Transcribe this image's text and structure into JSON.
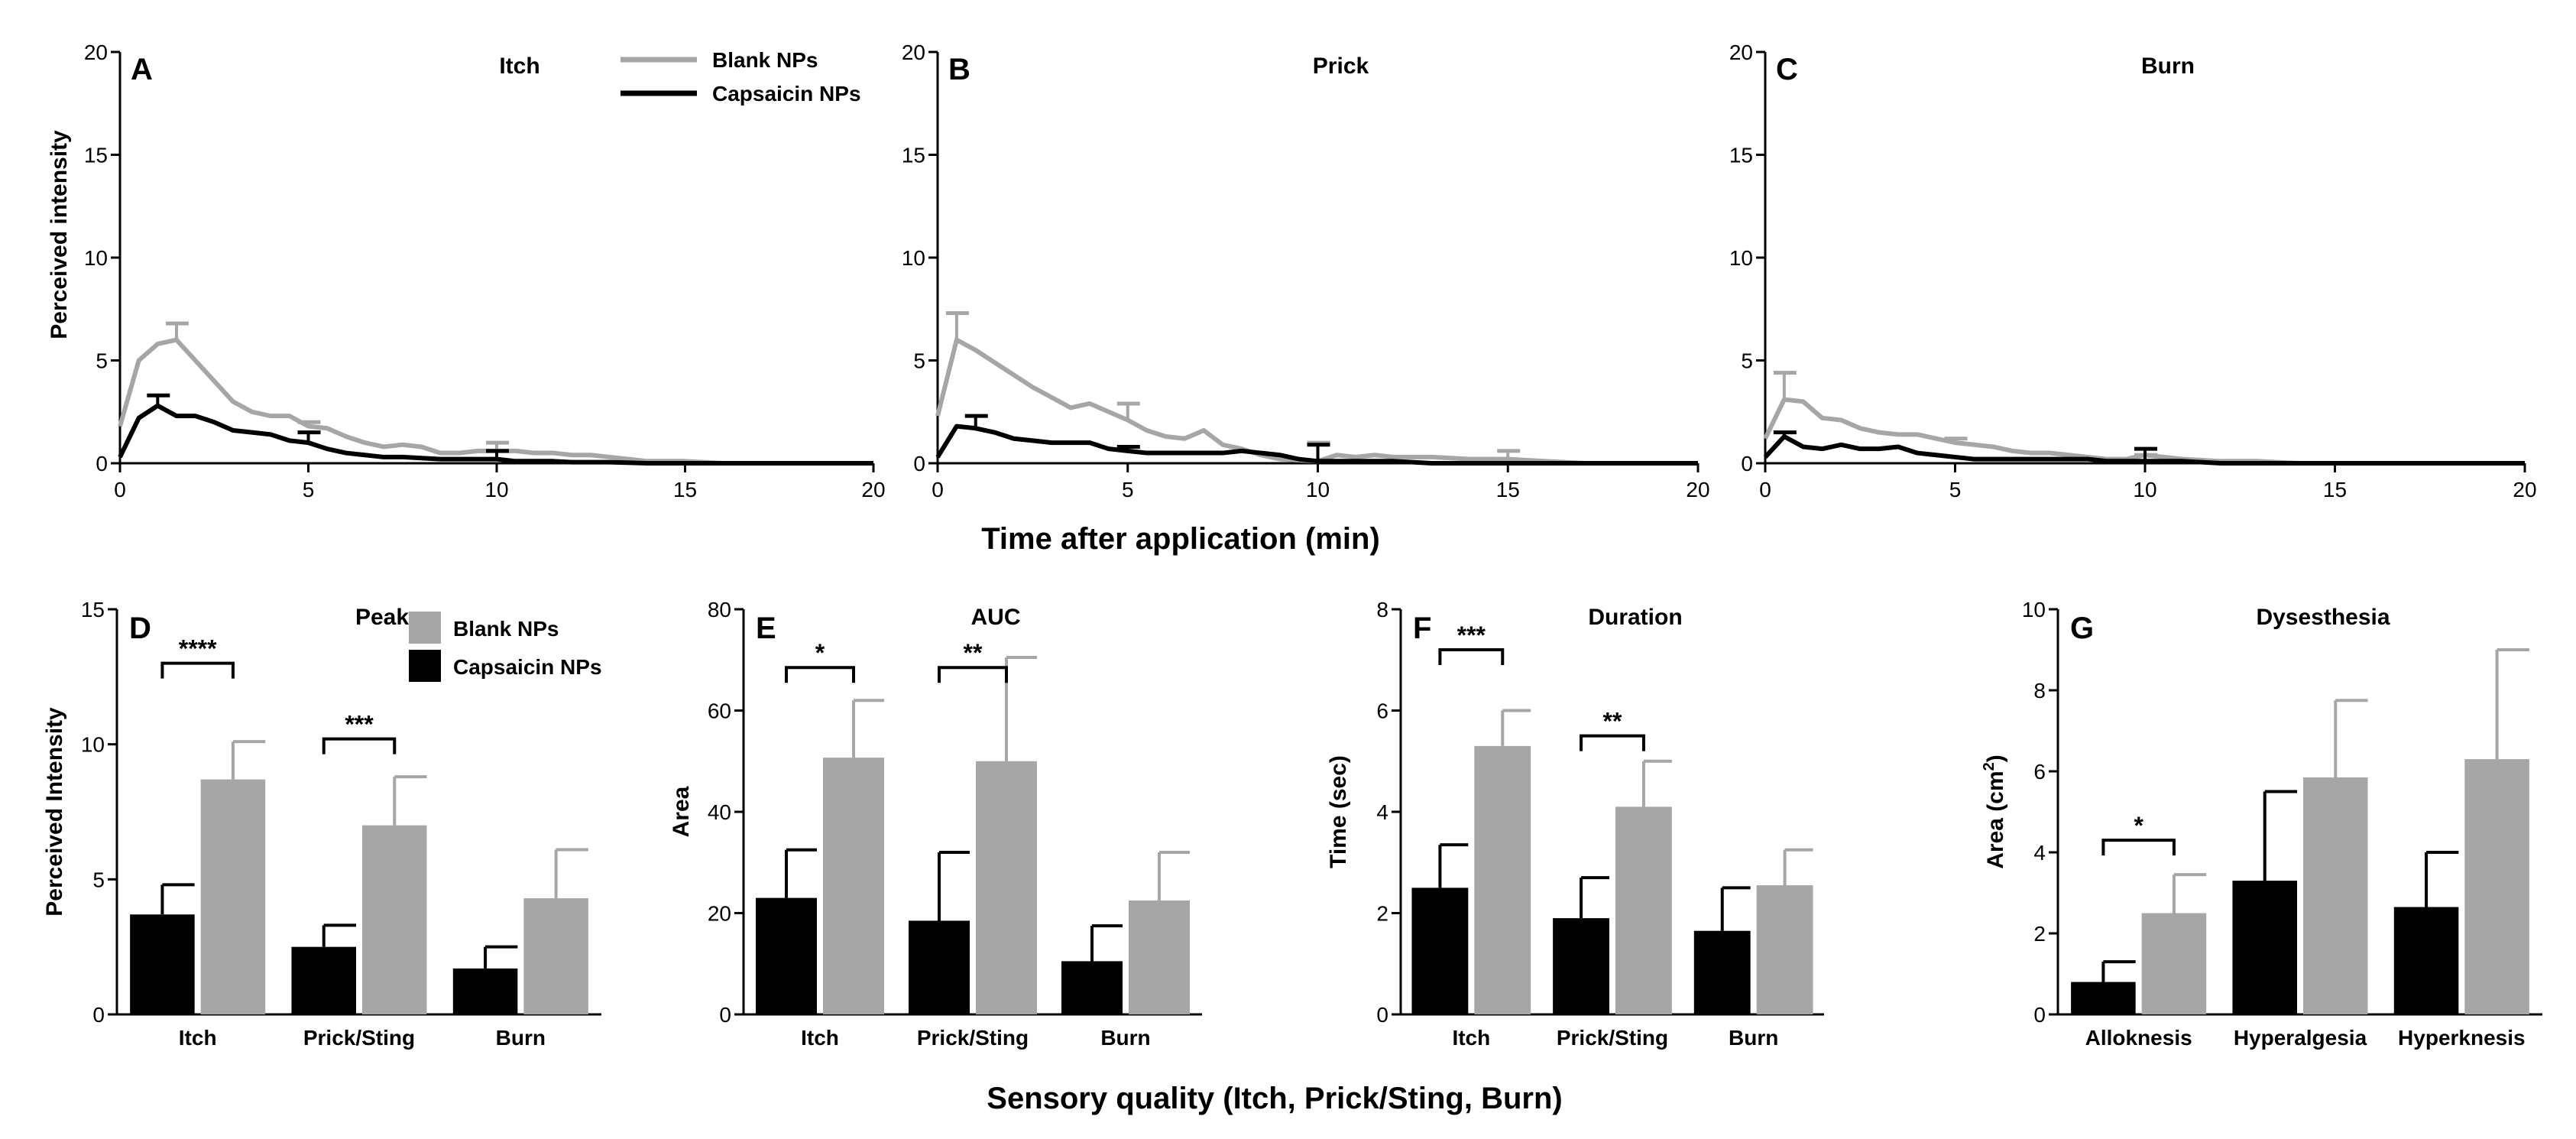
{
  "figure": {
    "bottom_xlabel_top": "Time after application (min)",
    "bottom_xlabel_bottom": "Sensory quality (Itch, Prick/Sting, Burn)"
  },
  "colors": {
    "blank": "#a6a6a6",
    "capsaicin": "#000000"
  },
  "chart_data": [
    {
      "id": "A",
      "type": "line",
      "title": "Itch",
      "letter": "A",
      "xlabel": "",
      "ylabel": "Perceived intensity",
      "xlim": [
        0,
        20
      ],
      "ylim": [
        0,
        20
      ],
      "xticks": [
        0,
        5,
        10,
        15,
        20
      ],
      "yticks": [
        0,
        5,
        10,
        15,
        20
      ],
      "legend": [
        "Blank NPs",
        "Capsaicin NPs"
      ],
      "series": [
        {
          "name": "Blank NPs",
          "color": "#a6a6a6",
          "x": [
            0,
            0.5,
            1,
            1.5,
            2,
            2.5,
            3,
            3.5,
            4,
            4.5,
            5,
            5.5,
            6,
            6.5,
            7,
            7.5,
            8,
            8.5,
            9,
            9.5,
            10,
            10.5,
            11,
            11.5,
            12,
            12.5,
            13,
            13.5,
            14,
            14.5,
            15,
            15.5,
            16,
            17,
            18,
            19,
            20
          ],
          "y": [
            1.8,
            5.0,
            5.8,
            6.0,
            5.0,
            4.0,
            3.0,
            2.5,
            2.3,
            2.3,
            1.8,
            1.7,
            1.3,
            1.0,
            0.8,
            0.9,
            0.8,
            0.5,
            0.5,
            0.6,
            0.6,
            0.6,
            0.5,
            0.5,
            0.4,
            0.4,
            0.3,
            0.2,
            0.1,
            0.1,
            0.1,
            0.05,
            0.0,
            0.0,
            0.0,
            0.0,
            0.0
          ],
          "error_x": [
            1.5,
            5,
            10
          ],
          "error_hi": [
            6.8,
            2.0,
            1.0
          ]
        },
        {
          "name": "Capsaicin NPs",
          "color": "#000000",
          "x": [
            0,
            0.5,
            1,
            1.5,
            2,
            2.5,
            3,
            3.5,
            4,
            4.5,
            5,
            5.5,
            6,
            6.5,
            7,
            7.5,
            8,
            8.5,
            9,
            9.5,
            10,
            10.5,
            11,
            11.5,
            12,
            13,
            14,
            15,
            16,
            17,
            18,
            19,
            20
          ],
          "y": [
            0.3,
            2.2,
            2.8,
            2.3,
            2.3,
            2.0,
            1.6,
            1.5,
            1.4,
            1.1,
            1.0,
            0.7,
            0.5,
            0.4,
            0.3,
            0.3,
            0.25,
            0.2,
            0.2,
            0.2,
            0.2,
            0.1,
            0.1,
            0.1,
            0.05,
            0.05,
            0.0,
            0.0,
            0.0,
            0.0,
            0.0,
            0.0,
            0.0
          ],
          "error_x": [
            1,
            5,
            10
          ],
          "error_hi": [
            3.3,
            1.5,
            0.6
          ]
        }
      ]
    },
    {
      "id": "B",
      "type": "line",
      "title": "Prick",
      "letter": "B",
      "xlabel": "",
      "ylabel": "",
      "xlim": [
        0,
        20
      ],
      "ylim": [
        0,
        20
      ],
      "xticks": [
        0,
        5,
        10,
        15,
        20
      ],
      "yticks": [
        0,
        5,
        10,
        15,
        20
      ],
      "series": [
        {
          "name": "Blank NPs",
          "color": "#a6a6a6",
          "x": [
            0,
            0.5,
            1,
            1.5,
            2,
            2.5,
            3,
            3.5,
            4,
            4.5,
            5,
            5.5,
            6,
            6.5,
            7,
            7.5,
            8,
            8.5,
            9,
            9.5,
            10,
            10.5,
            11,
            11.5,
            12,
            12.5,
            13,
            14,
            15,
            16,
            17,
            18,
            19,
            20
          ],
          "y": [
            2.3,
            6.0,
            5.5,
            4.9,
            4.3,
            3.7,
            3.2,
            2.7,
            2.9,
            2.5,
            2.1,
            1.6,
            1.3,
            1.2,
            1.6,
            0.9,
            0.7,
            0.4,
            0.2,
            0.15,
            0.1,
            0.4,
            0.3,
            0.4,
            0.3,
            0.3,
            0.3,
            0.2,
            0.2,
            0.1,
            0.0,
            0.0,
            0.0,
            0.0
          ],
          "error_x": [
            0.5,
            5,
            10,
            15
          ],
          "error_hi": [
            7.3,
            2.9,
            1.0,
            0.6
          ]
        },
        {
          "name": "Capsaicin NPs",
          "color": "#000000",
          "x": [
            0,
            0.5,
            1,
            1.5,
            2,
            2.5,
            3,
            3.5,
            4,
            4.5,
            5,
            5.5,
            6,
            6.5,
            7,
            7.5,
            8,
            8.5,
            9,
            9.5,
            10,
            11,
            12,
            13,
            14,
            15,
            16,
            17,
            18,
            19,
            20
          ],
          "y": [
            0.3,
            1.8,
            1.7,
            1.5,
            1.2,
            1.1,
            1.0,
            1.0,
            1.0,
            0.7,
            0.6,
            0.5,
            0.5,
            0.5,
            0.5,
            0.5,
            0.6,
            0.5,
            0.4,
            0.2,
            0.1,
            0.1,
            0.1,
            0.0,
            0.0,
            0.0,
            0.0,
            0.0,
            0.0,
            0.0,
            0.0
          ],
          "error_x": [
            1,
            5,
            10
          ],
          "error_hi": [
            2.3,
            0.8,
            0.9
          ]
        }
      ]
    },
    {
      "id": "C",
      "type": "line",
      "title": "Burn",
      "letter": "C",
      "xlabel": "",
      "ylabel": "",
      "xlim": [
        0,
        20
      ],
      "ylim": [
        0,
        20
      ],
      "xticks": [
        0,
        5,
        10,
        15,
        20
      ],
      "yticks": [
        0,
        5,
        10,
        15,
        20
      ],
      "series": [
        {
          "name": "Blank NPs",
          "color": "#a6a6a6",
          "x": [
            0,
            0.5,
            1,
            1.5,
            2,
            2.5,
            3,
            3.5,
            4,
            4.5,
            5,
            5.5,
            6,
            6.5,
            7,
            7.5,
            8,
            8.5,
            9,
            9.5,
            10,
            10.5,
            11,
            12,
            13,
            14,
            15,
            16,
            17,
            18,
            19,
            20
          ],
          "y": [
            1.2,
            3.1,
            3.0,
            2.2,
            2.1,
            1.7,
            1.5,
            1.4,
            1.4,
            1.2,
            1.0,
            0.9,
            0.8,
            0.6,
            0.5,
            0.5,
            0.4,
            0.3,
            0.2,
            0.2,
            0.4,
            0.3,
            0.2,
            0.1,
            0.1,
            0.0,
            0.0,
            0.0,
            0.0,
            0.0,
            0.0,
            0.0
          ],
          "error_x": [
            0.5,
            5,
            10
          ],
          "error_hi": [
            4.4,
            1.2,
            0.4
          ]
        },
        {
          "name": "Capsaicin NPs",
          "color": "#000000",
          "x": [
            0,
            0.5,
            1,
            1.5,
            2,
            2.5,
            3,
            3.5,
            4,
            4.5,
            5,
            5.5,
            6,
            6.5,
            7,
            7.5,
            8,
            8.5,
            9,
            9.5,
            10,
            11,
            12,
            13,
            14,
            15,
            16,
            17,
            18,
            19,
            20
          ],
          "y": [
            0.3,
            1.3,
            0.8,
            0.7,
            0.9,
            0.7,
            0.7,
            0.8,
            0.5,
            0.4,
            0.3,
            0.2,
            0.2,
            0.2,
            0.2,
            0.2,
            0.2,
            0.2,
            0.1,
            0.1,
            0.1,
            0.1,
            0.0,
            0.0,
            0.0,
            0.0,
            0.0,
            0.0,
            0.0,
            0.0,
            0.0
          ],
          "error_x": [
            0.5,
            10
          ],
          "error_hi": [
            1.5,
            0.7
          ]
        }
      ]
    },
    {
      "id": "D",
      "type": "bar",
      "title": "Peak",
      "letter": "D",
      "ylabel": "Perceived Intensity",
      "ylim": [
        0,
        15
      ],
      "yticks": [
        0,
        5,
        10,
        15
      ],
      "categories": [
        "Itch",
        "Prick/Sting",
        "Burn"
      ],
      "legend": [
        "Blank  NPs",
        "Capsaicin NPs"
      ],
      "series": [
        {
          "name": "Capsaicin NPs",
          "color": "#000000",
          "values": [
            3.7,
            2.5,
            1.7
          ],
          "error_hi": [
            4.8,
            3.3,
            2.5
          ]
        },
        {
          "name": "Blank NPs",
          "color": "#a6a6a6",
          "values": [
            8.7,
            7.0,
            4.3
          ],
          "error_hi": [
            10.1,
            8.8,
            6.1
          ]
        }
      ],
      "sig": [
        {
          "cat": 0,
          "label": "****",
          "y": 13.0
        },
        {
          "cat": 1,
          "label": "***",
          "y": 10.2
        }
      ]
    },
    {
      "id": "E",
      "type": "bar",
      "title": "AUC",
      "letter": "E",
      "ylabel": "Area",
      "ylim": [
        0,
        80
      ],
      "yticks": [
        0,
        20,
        40,
        60,
        80
      ],
      "categories": [
        "Itch",
        "Prick/Sting",
        "Burn"
      ],
      "series": [
        {
          "name": "Capsaicin NPs",
          "color": "#000000",
          "values": [
            23,
            18.5,
            10.5
          ],
          "error_hi": [
            32.5,
            32.0,
            17.5
          ]
        },
        {
          "name": "Blank NPs",
          "color": "#a6a6a6",
          "values": [
            50.7,
            50.0,
            22.5
          ],
          "error_hi": [
            62.0,
            70.5,
            32.0
          ]
        }
      ],
      "sig": [
        {
          "cat": 0,
          "label": "*",
          "y": 68.5
        },
        {
          "cat": 1,
          "label": "**",
          "y": 68.5
        }
      ]
    },
    {
      "id": "F",
      "type": "bar",
      "title": "Duration",
      "letter": "F",
      "ylabel": "Time (sec)",
      "ylim": [
        0,
        8
      ],
      "yticks": [
        0,
        2,
        4,
        6,
        8
      ],
      "categories": [
        "Itch",
        "Prick/Sting",
        "Burn"
      ],
      "series": [
        {
          "name": "Capsaicin NPs",
          "color": "#000000",
          "values": [
            2.5,
            1.9,
            1.65
          ],
          "error_hi": [
            3.35,
            2.7,
            2.5
          ]
        },
        {
          "name": "Blank NPs",
          "color": "#a6a6a6",
          "values": [
            5.3,
            4.1,
            2.55
          ],
          "error_hi": [
            6.0,
            5.0,
            3.25
          ]
        }
      ],
      "sig": [
        {
          "cat": 0,
          "label": "***",
          "y": 7.2
        },
        {
          "cat": 1,
          "label": "**",
          "y": 5.5
        }
      ]
    },
    {
      "id": "G",
      "type": "bar",
      "title": "Dysesthesia",
      "letter": "G",
      "ylabel": "Area (cm",
      "ylabel_sup": "2",
      "ylabel_end": ")",
      "ylim": [
        0,
        10
      ],
      "yticks": [
        0,
        2,
        4,
        6,
        8,
        10
      ],
      "categories": [
        "Alloknesis",
        "Hyperalgesia",
        "Hyperknesis"
      ],
      "series": [
        {
          "name": "Capsaicin NPs",
          "color": "#000000",
          "values": [
            0.8,
            3.3,
            2.65
          ],
          "error_hi": [
            1.3,
            5.5,
            4.0
          ]
        },
        {
          "name": "Blank NPs",
          "color": "#a6a6a6",
          "values": [
            2.5,
            5.85,
            6.3
          ],
          "error_hi": [
            3.45,
            7.75,
            9.0
          ]
        }
      ],
      "sig": [
        {
          "cat": 0,
          "label": "*",
          "y": 4.3
        }
      ]
    }
  ]
}
